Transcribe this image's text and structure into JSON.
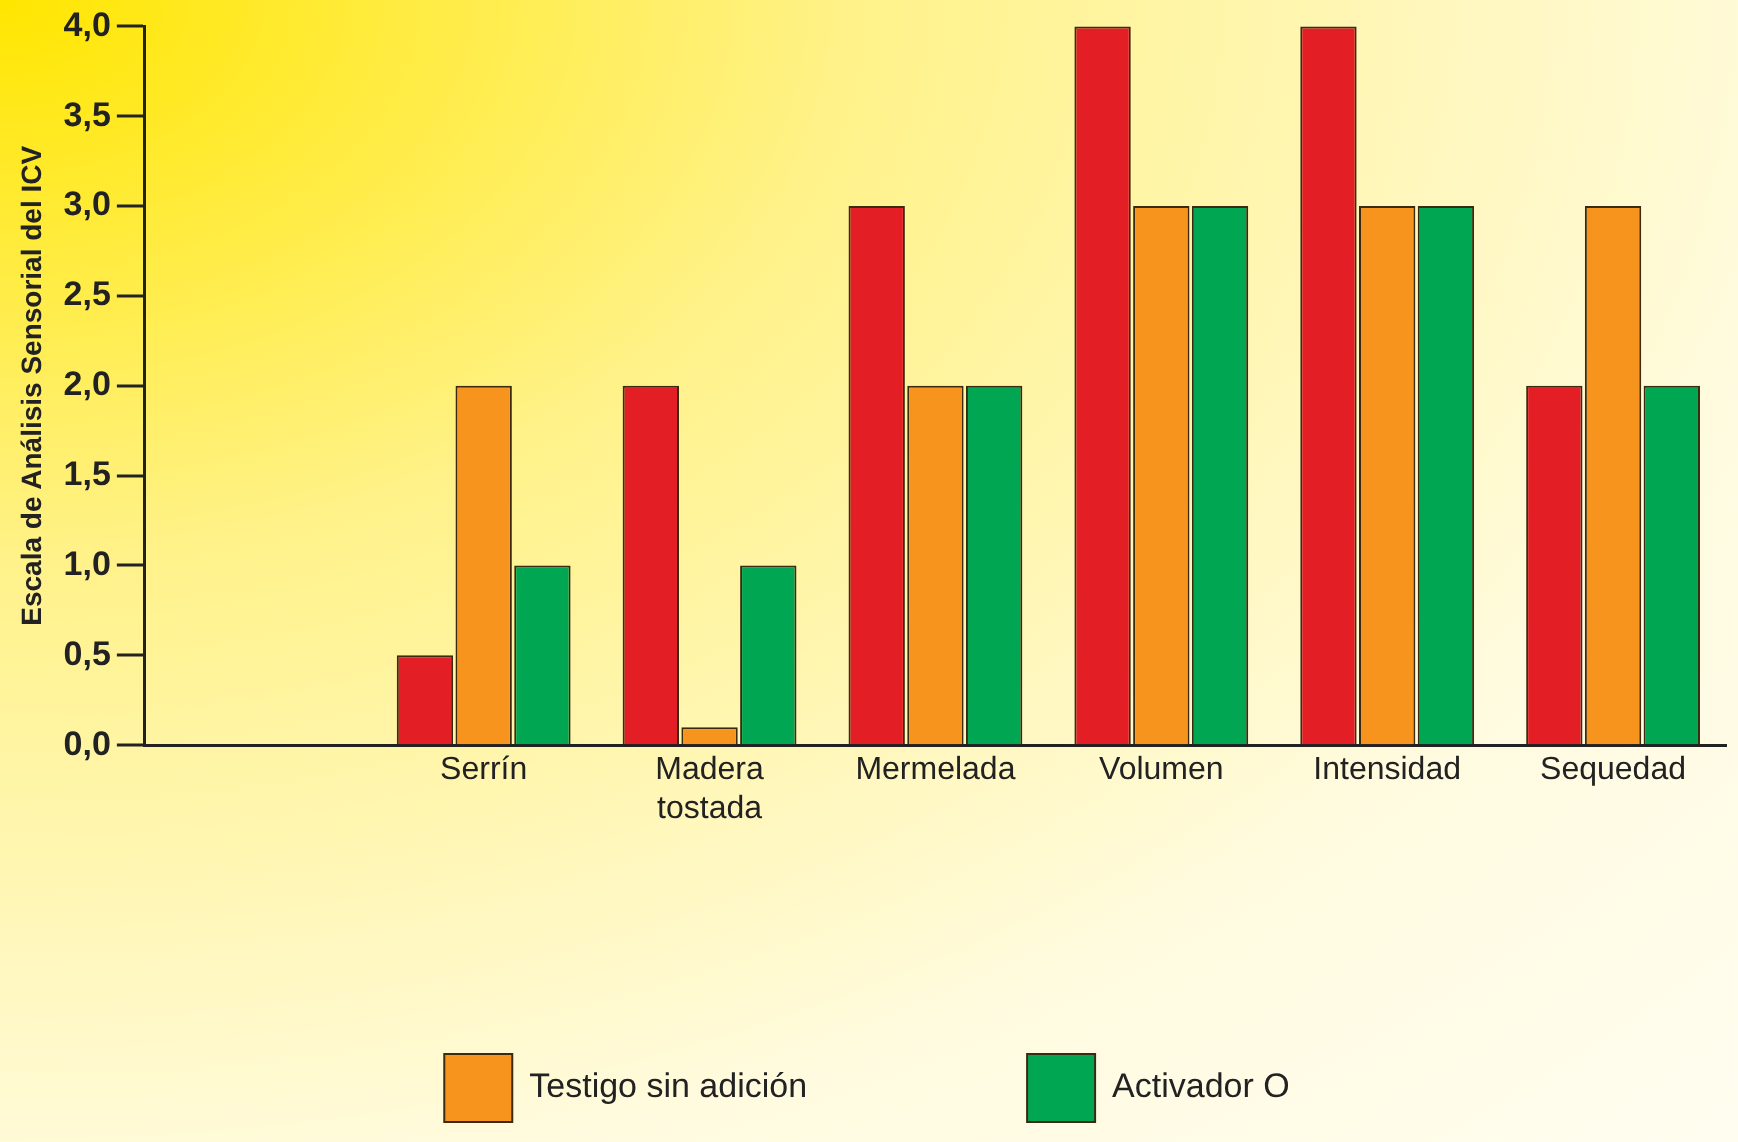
{
  "chart_data": {
    "type": "bar",
    "ylabel": "Escala de Análisis Sensorial del ICV",
    "categories": [
      null,
      "Serrín",
      "Madera tostada",
      "Mermelada",
      "Volumen",
      "Intensidad",
      "Sequedad"
    ],
    "series": [
      {
        "color": "#e31e24",
        "values": [
          null,
          0.5,
          2,
          3,
          4,
          4,
          2
        ]
      },
      {
        "name": "Testigo sin adición",
        "color": "#f7941d",
        "values": [
          null,
          2,
          0.1,
          2,
          3,
          3,
          3
        ]
      },
      {
        "name": "Activador O",
        "color": "#00a651",
        "values": [
          null,
          1,
          1,
          2,
          3,
          3,
          2
        ]
      }
    ],
    "ylim": [
      0,
      4
    ],
    "yticks": [
      {
        "value": 0,
        "label": "0,0"
      },
      {
        "value": 0.5,
        "label": "0,5"
      },
      {
        "value": 1,
        "label": "1,0"
      },
      {
        "value": 1.5,
        "label": "1,5"
      },
      {
        "value": 2,
        "label": "2,0"
      },
      {
        "value": 2.5,
        "label": "2,5"
      },
      {
        "value": 3,
        "label": "3,0"
      },
      {
        "value": 3.5,
        "label": "3,5"
      },
      {
        "value": 4,
        "label": "4,0"
      }
    ],
    "grid": false,
    "legend": "bottom"
  }
}
